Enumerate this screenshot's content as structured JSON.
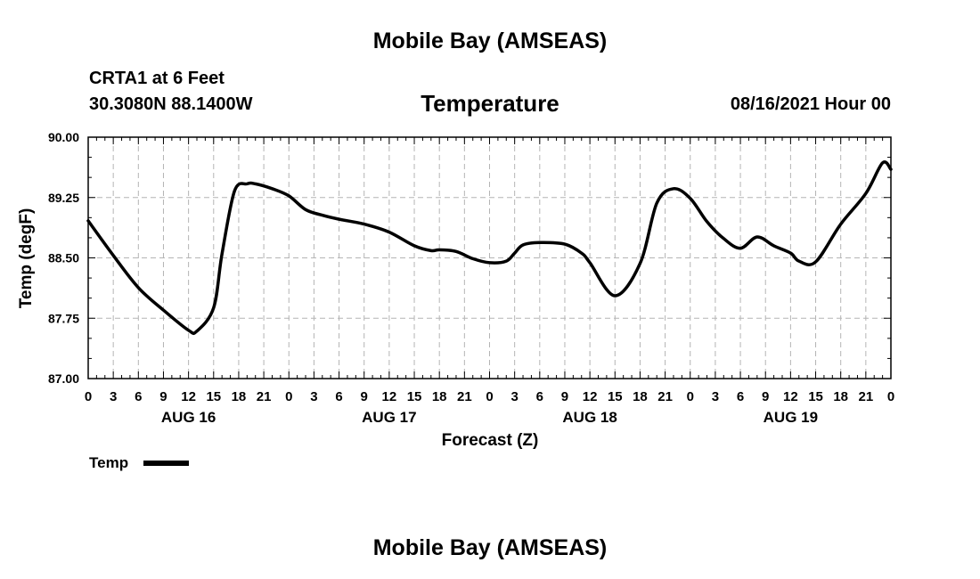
{
  "header": {
    "top_title": "Mobile Bay (AMSEAS)",
    "station": "CRTA1 at 6 Feet",
    "coords": "30.3080N  88.1400W",
    "chart_title": "Temperature",
    "datetime": "08/16/2021 Hour 00",
    "bottom_title": "Mobile Bay (AMSEAS)"
  },
  "legend": {
    "label": "Temp"
  },
  "colors": {
    "line": "#000000",
    "grid": "#b4b4b4",
    "background": "#ffffff"
  },
  "chart_data": {
    "type": "line",
    "title": "Temperature",
    "xlabel": "Forecast (Z)",
    "ylabel": "Temp (degF)",
    "ylim": [
      87.0,
      90.0
    ],
    "yticks": [
      "90.00",
      "89.25",
      "88.50",
      "87.75",
      "87.00"
    ],
    "ytick_values": [
      90.0,
      89.25,
      88.5,
      87.75,
      87.0
    ],
    "xlim": [
      0,
      96
    ],
    "xticks": [
      "0",
      "3",
      "6",
      "9",
      "12",
      "15",
      "18",
      "21",
      "0",
      "3",
      "6",
      "9",
      "12",
      "15",
      "18",
      "21",
      "0",
      "3",
      "6",
      "9",
      "12",
      "15",
      "18",
      "21",
      "0",
      "3",
      "6",
      "9",
      "12",
      "15",
      "18",
      "21",
      "0"
    ],
    "day_labels": [
      "AUG 16",
      "AUG 17",
      "AUG 18",
      "AUG 19"
    ],
    "grid": true,
    "legend_position": "bottom-left",
    "series": [
      {
        "name": "Temp",
        "x": [
          0,
          3,
          6,
          9,
          12,
          13,
          15,
          16,
          17.5,
          19,
          20,
          22,
          24,
          26,
          28,
          30,
          33,
          36,
          39,
          41,
          42,
          44,
          46,
          48,
          50,
          51,
          52,
          54,
          57,
          59,
          60,
          63,
          66,
          68,
          70,
          72,
          74,
          76,
          78,
          80,
          82,
          84,
          85,
          87,
          90,
          93,
          95,
          96
        ],
        "values": [
          88.96,
          88.53,
          88.13,
          87.85,
          87.6,
          87.59,
          87.88,
          88.55,
          89.33,
          89.42,
          89.42,
          89.36,
          89.27,
          89.1,
          89.03,
          88.98,
          88.92,
          88.82,
          88.65,
          88.59,
          88.6,
          88.58,
          88.49,
          88.44,
          88.46,
          88.56,
          88.66,
          88.69,
          88.67,
          88.56,
          88.44,
          88.03,
          88.43,
          89.18,
          89.36,
          89.24,
          88.95,
          88.74,
          88.62,
          88.76,
          88.65,
          88.56,
          88.46,
          88.45,
          88.92,
          89.3,
          89.68,
          89.6
        ]
      }
    ]
  }
}
